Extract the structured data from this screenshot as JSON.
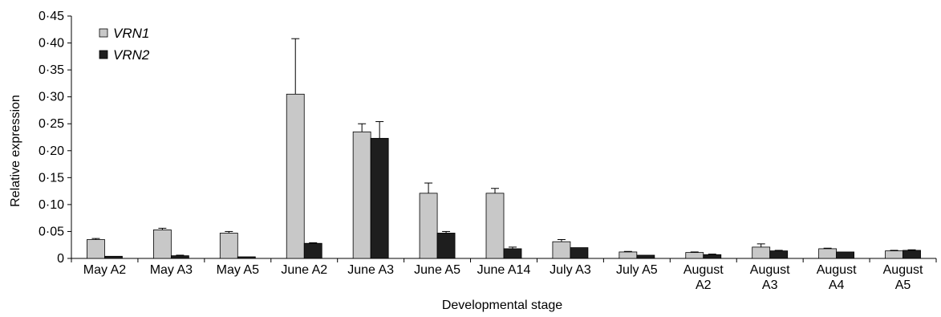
{
  "chart_data": {
    "type": "bar",
    "xlabel": "Developmental stage",
    "ylabel": "Relative expression",
    "ylim": [
      0,
      0.45
    ],
    "yticks": [
      "0",
      "0·05",
      "0·10",
      "0·15",
      "0·20",
      "0·25",
      "0·30",
      "0·35",
      "0·40",
      "0·45"
    ],
    "categories": [
      [
        "May A2"
      ],
      [
        "May A3"
      ],
      [
        "May A5"
      ],
      [
        "June A2"
      ],
      [
        "June A3"
      ],
      [
        "June A5"
      ],
      [
        "June A14"
      ],
      [
        "July A3"
      ],
      [
        "July A5"
      ],
      [
        "August",
        "A2"
      ],
      [
        "August",
        "A3"
      ],
      [
        "August",
        "A4"
      ],
      [
        "August",
        "A5"
      ]
    ],
    "series": [
      {
        "name": "VRN1",
        "color": "#c8c8c8",
        "values": [
          0.035,
          0.053,
          0.047,
          0.305,
          0.235,
          0.121,
          0.121,
          0.031,
          0.012,
          0.011,
          0.021,
          0.018,
          0.014
        ],
        "errors": [
          0.002,
          0.003,
          0.003,
          0.103,
          0.015,
          0.019,
          0.009,
          0.004,
          0.001,
          0.001,
          0.006,
          0.001,
          0.001
        ]
      },
      {
        "name": "VRN2",
        "color": "#1e1e1e",
        "values": [
          0.004,
          0.005,
          0.003,
          0.028,
          0.223,
          0.047,
          0.018,
          0.02,
          0.006,
          0.007,
          0.014,
          0.012,
          0.015
        ],
        "errors": [
          0.0,
          0.001,
          0.0,
          0.001,
          0.031,
          0.003,
          0.003,
          0.0,
          0.0,
          0.001,
          0.001,
          0.0,
          0.001
        ]
      }
    ],
    "legend": {
      "position": "top-left"
    },
    "grid": false
  }
}
